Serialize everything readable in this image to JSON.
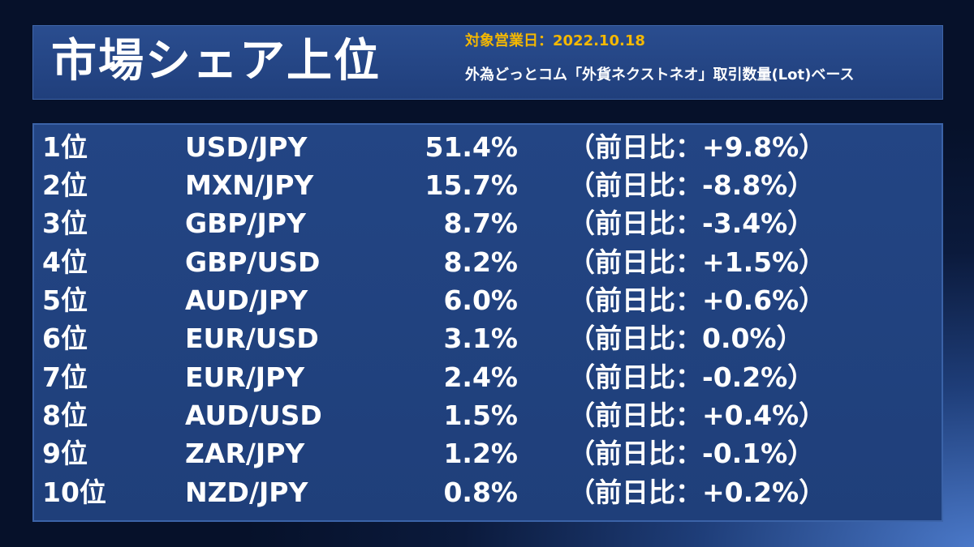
{
  "header": {
    "title": "市場シェア上位",
    "date_label": "対象営業日：2022.10.18",
    "description": "外為どっとコム「外貨ネクストネオ」取引数量(Lot)ベース"
  },
  "colors": {
    "accent": "#f5b800",
    "panel": "#234584",
    "text": "#ffffff"
  },
  "rankings": [
    {
      "rank": "1位",
      "pair": "USD/JPY",
      "share": "51.4%",
      "change": "（前日比：+9.8%）"
    },
    {
      "rank": "2位",
      "pair": "MXN/JPY",
      "share": "15.7%",
      "change": "（前日比：-8.8%）"
    },
    {
      "rank": "3位",
      "pair": "GBP/JPY",
      "share": "8.7%",
      "change": "（前日比：-3.4%）"
    },
    {
      "rank": "4位",
      "pair": "GBP/USD",
      "share": "8.2%",
      "change": "（前日比：+1.5%）"
    },
    {
      "rank": "5位",
      "pair": "AUD/JPY",
      "share": "6.0%",
      "change": "（前日比：+0.6%）"
    },
    {
      "rank": "6位",
      "pair": "EUR/USD",
      "share": "3.1%",
      "change": "（前日比：0.0%）"
    },
    {
      "rank": "7位",
      "pair": "EUR/JPY",
      "share": "2.4%",
      "change": "（前日比：-0.2%）"
    },
    {
      "rank": "8位",
      "pair": "AUD/USD",
      "share": "1.5%",
      "change": "（前日比：+0.4%）"
    },
    {
      "rank": "9位",
      "pair": "ZAR/JPY",
      "share": "1.2%",
      "change": "（前日比：-0.1%）"
    },
    {
      "rank": "10位",
      "pair": "NZD/JPY",
      "share": "0.8%",
      "change": "（前日比：+0.2%）"
    }
  ]
}
